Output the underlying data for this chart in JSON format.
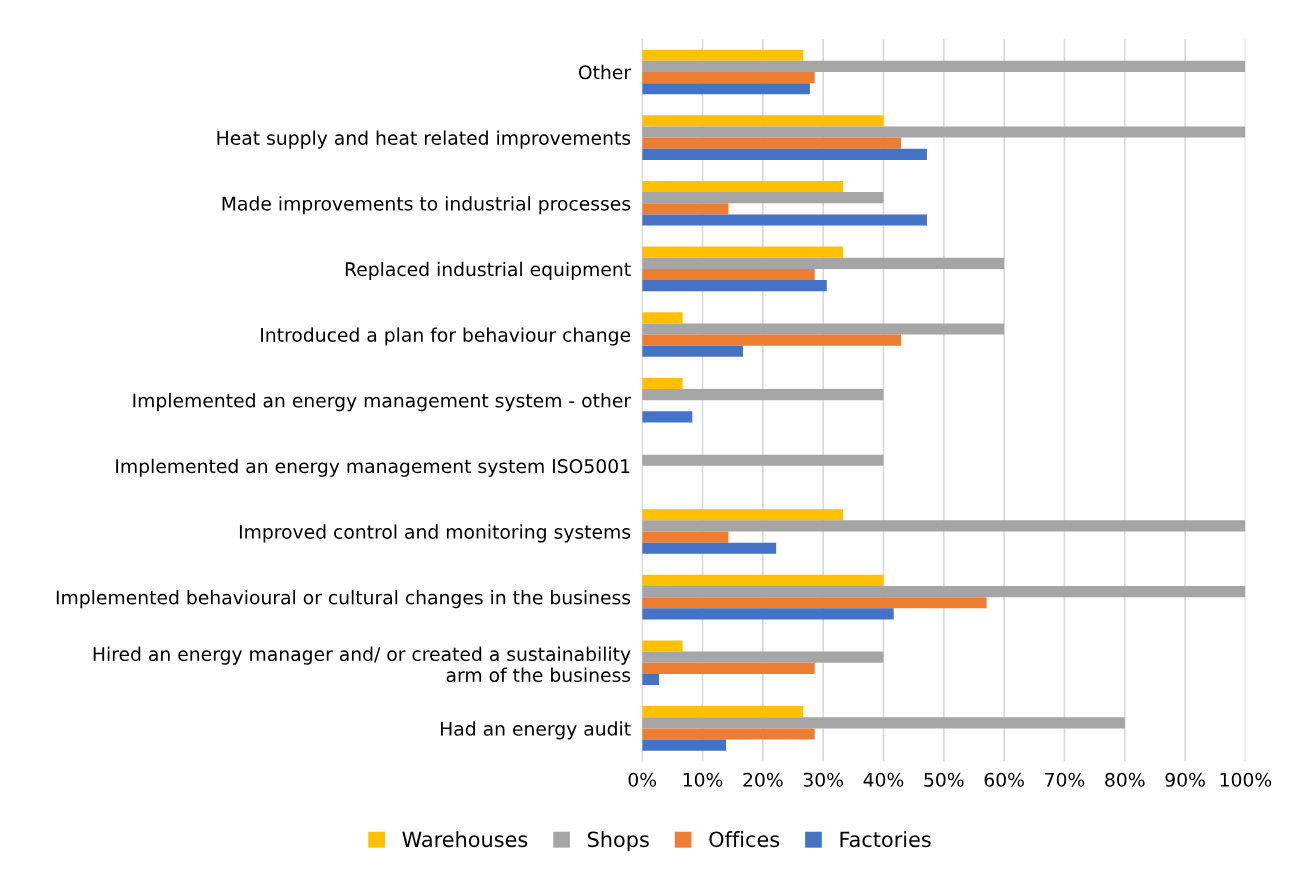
{
  "chart_data": {
    "type": "bar",
    "orientation": "horizontal",
    "categories": [
      "Other",
      "Heat supply and heat related improvements",
      "Made improvements to industrial processes",
      "Replaced industrial equipment",
      "Introduced a plan for behaviour change",
      "Implemented an energy management system - other",
      "Implemented an energy management system ISO5001",
      "Improved control and monitoring systems",
      "Implemented behavioural or cultural changes in the business",
      "Hired an energy manager and/ or created a sustainability\narm of the business",
      "Had an energy audit"
    ],
    "series": [
      {
        "name": "Warehouses",
        "color": "#ffc000",
        "values": [
          26.7,
          40,
          33.3,
          33.3,
          6.7,
          6.7,
          0,
          33.3,
          40,
          6.7,
          26.7
        ]
      },
      {
        "name": "Shops",
        "color": "#a5a5a5",
        "values": [
          100,
          100,
          40,
          60,
          60,
          40,
          40,
          100,
          100,
          40,
          80
        ]
      },
      {
        "name": "Offices",
        "color": "#ed7d31",
        "values": [
          28.6,
          42.9,
          14.3,
          28.6,
          42.9,
          0,
          0,
          14.3,
          57.1,
          28.6,
          28.6
        ]
      },
      {
        "name": "Factories",
        "color": "#4472c4",
        "values": [
          27.8,
          47.2,
          47.2,
          30.6,
          16.7,
          8.3,
          0,
          22.2,
          41.7,
          2.8,
          13.9
        ]
      }
    ],
    "xlim": [
      0,
      100
    ],
    "xticks": [
      {
        "value": 0,
        "label": "0%"
      },
      {
        "value": 10,
        "label": "10%"
      },
      {
        "value": 20,
        "label": "20%"
      },
      {
        "value": 30,
        "label": "30%"
      },
      {
        "value": 40,
        "label": "40%"
      },
      {
        "value": 50,
        "label": "50%"
      },
      {
        "value": 60,
        "label": "60%"
      },
      {
        "value": 70,
        "label": "70%"
      },
      {
        "value": 80,
        "label": "80%"
      },
      {
        "value": 90,
        "label": "90%"
      },
      {
        "value": 100,
        "label": "100%"
      }
    ],
    "grid": "x",
    "legend": "bottom"
  }
}
